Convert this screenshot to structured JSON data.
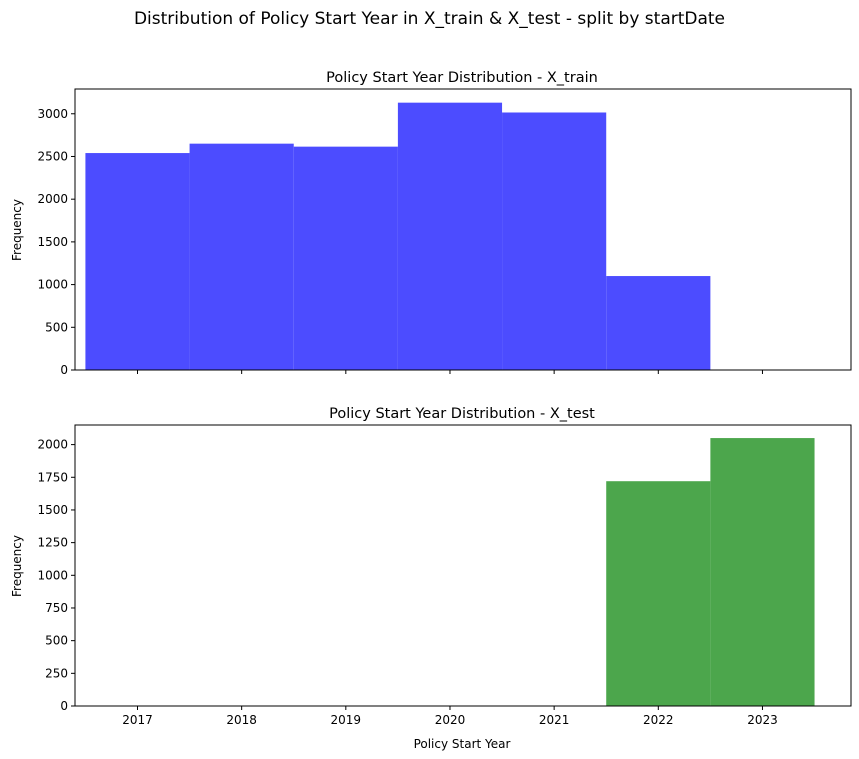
{
  "suptitle": "Distribution of Policy Start Year in X_train & X_test - split by startDate",
  "xlabel": "Policy Start Year",
  "colors": {
    "train": "#4c4cff",
    "test": "#4ca64c"
  },
  "chart_data": [
    {
      "type": "bar",
      "title": "Policy Start Year Distribution - X_train",
      "ylabel": "Frequency",
      "xlabel": "",
      "categories": [
        "2017",
        "2018",
        "2019",
        "2020",
        "2021",
        "2022",
        "2023"
      ],
      "values": [
        2540,
        2650,
        2615,
        3130,
        3015,
        1100,
        0
      ],
      "xlim": [
        2016.4,
        2023.85
      ],
      "ylim": [
        0,
        3290
      ],
      "yticks": [
        0,
        500,
        1000,
        1500,
        2000,
        2500,
        3000
      ],
      "grid": false,
      "show_xtick_labels": false
    },
    {
      "type": "bar",
      "title": "Policy Start Year Distribution - X_test",
      "ylabel": "Frequency",
      "xlabel": "Policy Start Year",
      "categories": [
        "2017",
        "2018",
        "2019",
        "2020",
        "2021",
        "2022",
        "2023"
      ],
      "values": [
        0,
        0,
        0,
        0,
        0,
        1720,
        2050
      ],
      "xlim": [
        2016.4,
        2023.85
      ],
      "ylim": [
        0,
        2150
      ],
      "yticks": [
        0,
        250,
        500,
        750,
        1000,
        1250,
        1500,
        1750,
        2000
      ],
      "grid": false,
      "show_xtick_labels": true
    }
  ]
}
